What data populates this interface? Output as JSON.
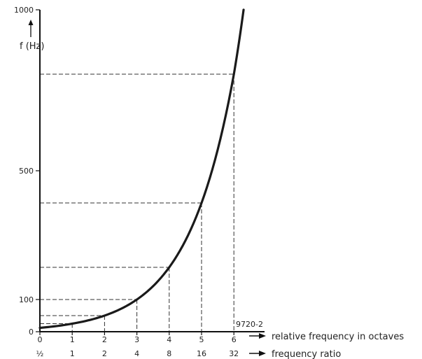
{
  "chart_data": {
    "type": "line",
    "ylabel": "f (Hz)",
    "ylim": [
      0,
      1000
    ],
    "xlim": [
      0,
      6
    ],
    "yticks": [
      "1000",
      "500",
      "100",
      "0"
    ],
    "x_ticks_octaves": [
      "0",
      "1",
      "2",
      "3",
      "4",
      "5",
      "6"
    ],
    "x_ticks_ratio": [
      "½",
      "1",
      "2",
      "4",
      "8",
      "16",
      "32"
    ],
    "x_label_octaves": "relative frequency in octaves",
    "x_label_ratio": "frequency ratio",
    "annotation": "9720-2",
    "series": [
      {
        "x": [
          0,
          1,
          2,
          3,
          4,
          5,
          6,
          6.3
        ],
        "y": [
          12,
          25,
          50,
          100,
          200,
          400,
          800,
          1000
        ]
      }
    ],
    "guide_points": [
      {
        "x": 1,
        "y": 25
      },
      {
        "x": 2,
        "y": 50
      },
      {
        "x": 3,
        "y": 100
      },
      {
        "x": 4,
        "y": 200
      },
      {
        "x": 5,
        "y": 400
      },
      {
        "x": 6,
        "y": 800
      }
    ],
    "grid": false
  }
}
